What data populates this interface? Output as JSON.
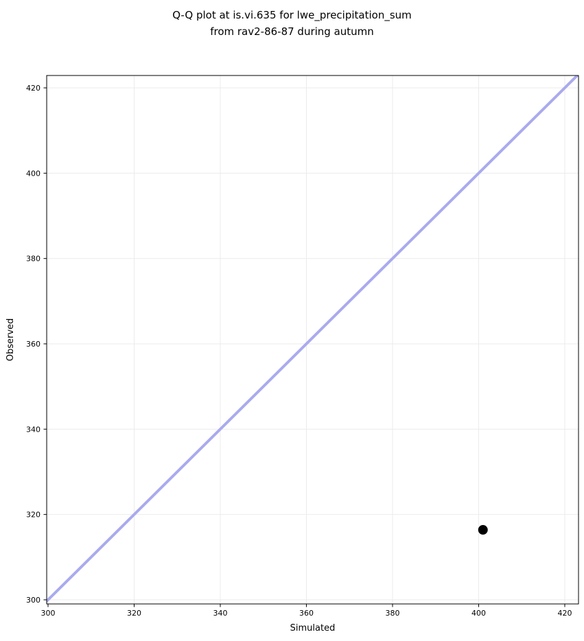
{
  "title": {
    "line1": "Q-Q plot at is.vi.635 for lwe_precipitation_sum",
    "line2": "from rav2-86-87 during autumn"
  },
  "colors": {
    "background": "#ffffff",
    "grid": "#ebebeb",
    "spine": "#000000",
    "tick": "#000000",
    "text": "#000000",
    "identity_line": "#aaaaee",
    "marker": "#000000"
  },
  "chart_data": {
    "type": "scatter",
    "title": "Q-Q plot at is.vi.635 for lwe_precipitation_sum\nfrom rav2-86-87 during autumn",
    "xlabel": "Simulated",
    "ylabel": "Observed",
    "xlim": [
      299.68,
      423.19
    ],
    "ylim": [
      299.03,
      422.9
    ],
    "xticks": [
      300,
      320,
      340,
      360,
      380,
      400,
      420
    ],
    "yticks": [
      300,
      320,
      340,
      360,
      380,
      400,
      420
    ],
    "grid": true,
    "legend": false,
    "identity_line": {
      "name": "identity-line",
      "color": "#aaaaee",
      "stroke_width": 4,
      "from": 298,
      "to": 425
    },
    "series": [
      {
        "name": "qq-points",
        "marker": "circle",
        "color": "#000000",
        "radius": 7,
        "points": [
          {
            "x": 401.0,
            "y": 316.4
          }
        ]
      }
    ]
  }
}
